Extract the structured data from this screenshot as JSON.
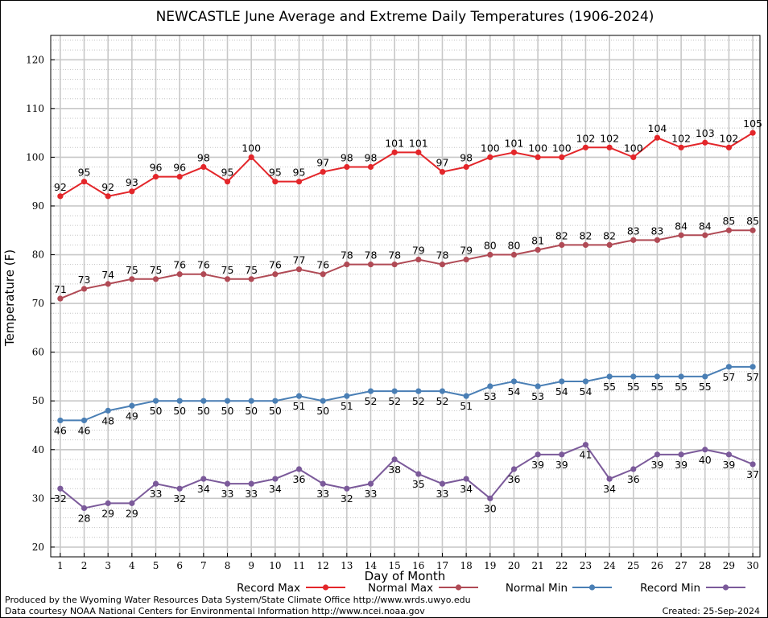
{
  "chart_data": {
    "type": "line",
    "title": "NEWCASTLE June Average and Extreme Daily Temperatures (1906-2024)",
    "xlabel": "Day of Month",
    "ylabel": "Temperature (F)",
    "ylim": [
      18,
      125
    ],
    "xlim": [
      0.6,
      30.3
    ],
    "yticks": [
      20,
      30,
      40,
      50,
      60,
      70,
      80,
      90,
      100,
      110,
      120
    ],
    "x": [
      1,
      2,
      3,
      4,
      5,
      6,
      7,
      8,
      9,
      10,
      11,
      12,
      13,
      14,
      15,
      16,
      17,
      18,
      19,
      20,
      21,
      22,
      23,
      24,
      25,
      26,
      27,
      28,
      29,
      30
    ],
    "grid": true,
    "legend_position": "bottom",
    "series": [
      {
        "name": "Record Max",
        "color": "#e3262a",
        "label_pos": "above",
        "values": [
          92,
          95,
          92,
          93,
          96,
          96,
          98,
          95,
          100,
          95,
          95,
          97,
          98,
          98,
          101,
          101,
          97,
          98,
          100,
          101,
          100,
          100,
          102,
          102,
          100,
          104,
          102,
          103,
          102,
          105
        ]
      },
      {
        "name": "Normal Max",
        "color": "#b04a55",
        "label_pos": "above",
        "values": [
          71,
          73,
          74,
          75,
          75,
          76,
          76,
          75,
          75,
          76,
          77,
          76,
          78,
          78,
          78,
          79,
          78,
          79,
          80,
          80,
          81,
          82,
          82,
          82,
          83,
          83,
          84,
          84,
          85,
          85
        ]
      },
      {
        "name": "Normal Min",
        "color": "#4a7fb5",
        "label_pos": "below",
        "values": [
          46,
          46,
          48,
          49,
          50,
          50,
          50,
          50,
          50,
          50,
          51,
          50,
          51,
          52,
          52,
          52,
          52,
          51,
          53,
          54,
          53,
          54,
          54,
          55,
          55,
          55,
          55,
          55,
          57,
          57
        ]
      },
      {
        "name": "Record Min",
        "color": "#7b5a9a",
        "label_pos": "below",
        "values": [
          32,
          28,
          29,
          29,
          33,
          32,
          34,
          33,
          33,
          34,
          36,
          33,
          32,
          33,
          38,
          35,
          33,
          34,
          30,
          36,
          39,
          39,
          41,
          34,
          36,
          39,
          39,
          40,
          39,
          37
        ]
      }
    ]
  },
  "footer": {
    "line1": "Produced by the Wyoming Water Resources Data System/State Climate Office http://www.wrds.uwyo.edu",
    "line2": "Data courtesy NOAA National Centers for Environmental Information http://www.ncei.noaa.gov",
    "created": "Created: 25-Sep-2024"
  }
}
